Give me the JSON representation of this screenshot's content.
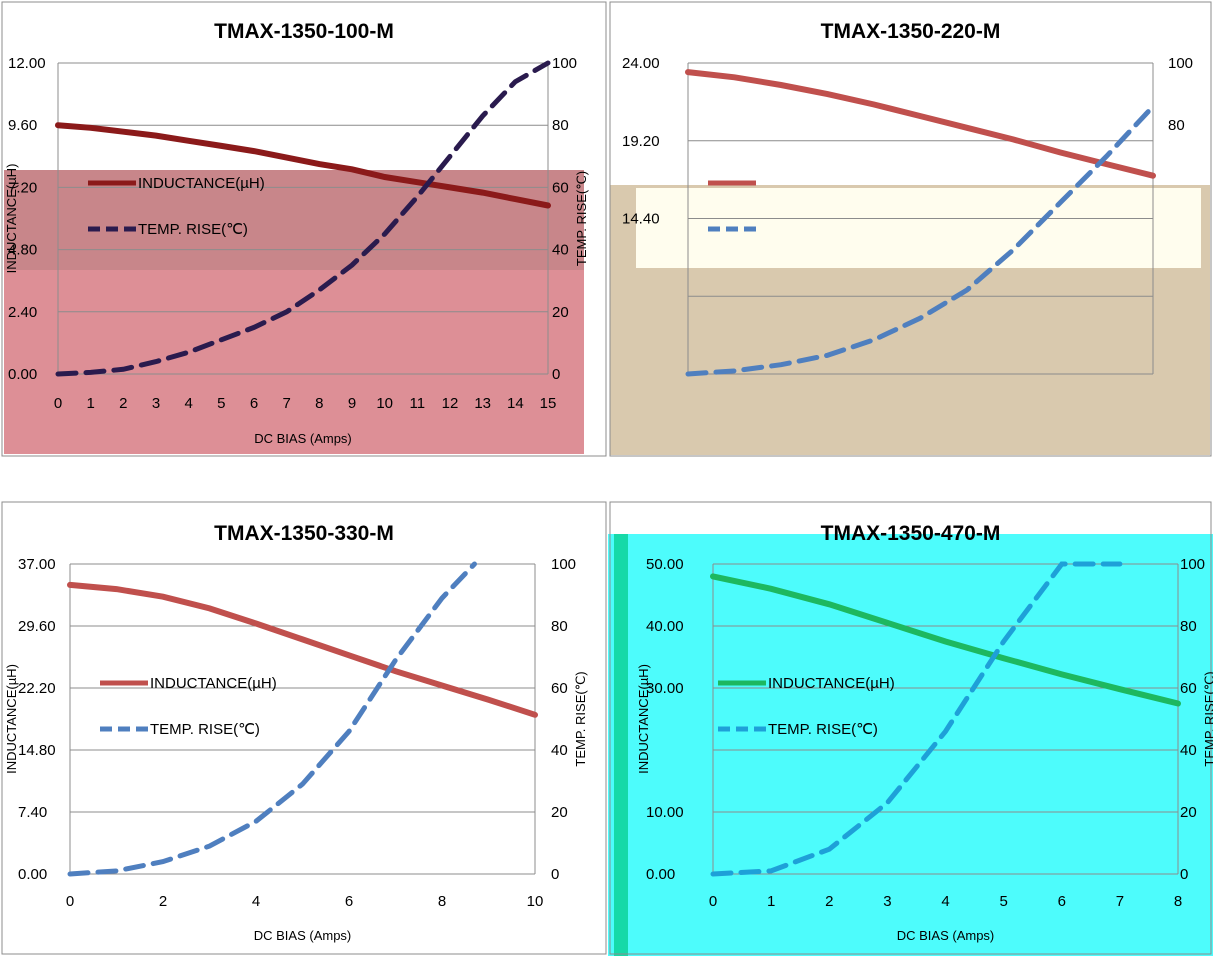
{
  "chart_data": [
    {
      "type": "line",
      "title": "TMAX-1350-100-M",
      "xlabel": "DC BIAS  (Amps)",
      "ylabel": "INDUCTANCE(µH)",
      "y2label": "TEMP. RISE(℃)",
      "categories": [
        "0",
        "1",
        "2",
        "3",
        "4",
        "5",
        "6",
        "7",
        "8",
        "9",
        "10",
        "11",
        "12",
        "13",
        "14",
        "15"
      ],
      "xlim": [
        0,
        15
      ],
      "ylim": [
        0,
        12
      ],
      "y2lim": [
        0,
        100
      ],
      "yticks": [
        "0.00",
        "2.40",
        "4.80",
        "7.20",
        "9.60",
        "12.00"
      ],
      "y2ticks": [
        "0",
        "20",
        "40",
        "60",
        "80",
        "100"
      ],
      "legend_position": "left",
      "colors": {
        "plot_bg": "#dd8f96",
        "legend_bg": "#c8868a",
        "inductance": "#8b1a1a",
        "temp": "#2a1b4e"
      },
      "series": [
        {
          "name": "INDUCTANCE(µH)",
          "axis": "left",
          "x": [
            0,
            1,
            2,
            3,
            4,
            5,
            6,
            7,
            8,
            9,
            10,
            11,
            12,
            13,
            14,
            15
          ],
          "values": [
            9.6,
            9.5,
            9.35,
            9.2,
            9.0,
            8.8,
            8.6,
            8.35,
            8.1,
            7.9,
            7.6,
            7.4,
            7.2,
            7.0,
            6.75,
            6.5
          ]
        },
        {
          "name": "TEMP. RISE(℃)",
          "axis": "right",
          "x": [
            0,
            1,
            2,
            3,
            4,
            5,
            6,
            7,
            8,
            9,
            10,
            11,
            12,
            13,
            14,
            15
          ],
          "values": [
            0,
            0.5,
            1.5,
            4,
            7,
            11,
            15,
            20,
            27,
            35,
            45,
            57,
            70,
            83,
            94,
            100
          ]
        }
      ]
    },
    {
      "type": "line",
      "title": "TMAX-1350-220-M",
      "xlabel": "",
      "ylabel": "",
      "y2label": "",
      "categories": [],
      "xlim": [
        0,
        10
      ],
      "ylim": [
        0,
        24
      ],
      "y2lim": [
        0,
        100
      ],
      "yticks": [
        "",
        "",
        "14.40",
        "19.20",
        "24.00"
      ],
      "y2ticks": [
        "",
        "",
        "",
        "",
        "80",
        "100"
      ],
      "legend_position": "left",
      "colors": {
        "plot_bg": "#d9c9ae",
        "legend_bg": "#fffdee",
        "inductance": "#c0504d",
        "temp": "#4f7fbf"
      },
      "series": [
        {
          "name": "",
          "axis": "left",
          "x": [
            0,
            1,
            2,
            3,
            4,
            5,
            6,
            7,
            8,
            9,
            10
          ],
          "values": [
            23.3,
            22.9,
            22.3,
            21.6,
            20.8,
            19.9,
            19.0,
            18.1,
            17.1,
            16.2,
            15.3
          ]
        },
        {
          "name": "",
          "axis": "right",
          "x": [
            0,
            1,
            2,
            3,
            4,
            5,
            6,
            7,
            8,
            9,
            10
          ],
          "values": [
            0,
            1,
            3,
            6,
            11,
            18,
            27,
            40,
            55,
            70,
            86
          ]
        }
      ]
    },
    {
      "type": "line",
      "title": "TMAX-1350-330-M",
      "xlabel": "DC BIAS  (Amps)",
      "ylabel": "INDUCTANCE(µH)",
      "y2label": "TEMP. RISE(℃)",
      "categories": [
        "0",
        "2",
        "4",
        "6",
        "8",
        "10"
      ],
      "xlim": [
        0,
        10
      ],
      "ylim": [
        0,
        37
      ],
      "y2lim": [
        0,
        100
      ],
      "yticks": [
        "0.00",
        "7.40",
        "14.80",
        "22.20",
        "29.60",
        "37.00"
      ],
      "y2ticks": [
        "0",
        "20",
        "40",
        "60",
        "80",
        "100"
      ],
      "legend_position": "left",
      "colors": {
        "plot_bg": "#ffffff",
        "legend_bg": "#ffffff",
        "inductance": "#c0504d",
        "temp_dark": "#4f7fbf",
        "temp_light": "#9cb9e6"
      },
      "series": [
        {
          "name": "INDUCTANCE(µH)",
          "axis": "left",
          "x": [
            0,
            1,
            2,
            3,
            4,
            5,
            6,
            7,
            8,
            9,
            10
          ],
          "values": [
            34.5,
            34.0,
            33.1,
            31.7,
            29.9,
            28.0,
            26.1,
            24.2,
            22.5,
            20.8,
            19.0
          ]
        },
        {
          "name": "TEMP. RISE(℃)",
          "axis": "right",
          "x": [
            0,
            1,
            2,
            3,
            4,
            5,
            6,
            7,
            8,
            8.7
          ],
          "values": [
            0,
            1,
            4,
            9,
            17,
            29,
            46,
            69,
            89,
            100
          ]
        }
      ]
    },
    {
      "type": "line",
      "title": "TMAX-1350-470-M",
      "xlabel": "DC BIAS  (Amps)",
      "ylabel": "INDUCTANCE(µH)",
      "y2label": "TEMP. RISE(℃)",
      "categories": [
        "0",
        "1",
        "2",
        "3",
        "4",
        "5",
        "6",
        "7",
        "8"
      ],
      "xlim": [
        0,
        8
      ],
      "ylim": [
        0,
        50
      ],
      "y2lim": [
        0,
        100
      ],
      "yticks": [
        "0.00",
        "10.00",
        "",
        "30.00",
        "40.00",
        "50.00"
      ],
      "y2ticks": [
        "0",
        "20",
        "40",
        "60",
        "80",
        "100"
      ],
      "legend_position": "left",
      "colors": {
        "plot_bg": "#4dfcfc",
        "inductance": "#1db860",
        "temp": "#1ea0d8"
      },
      "series": [
        {
          "name": "INDUCTANCE(µH)",
          "axis": "left",
          "x": [
            0,
            1,
            2,
            3,
            4,
            5,
            6,
            7,
            8
          ],
          "values": [
            48.0,
            46.0,
            43.5,
            40.5,
            37.5,
            34.8,
            32.2,
            29.8,
            27.5
          ]
        },
        {
          "name": "TEMP. RISE(℃)",
          "axis": "right",
          "x": [
            0,
            1,
            2,
            3,
            4,
            5,
            6,
            7
          ],
          "values": [
            0,
            1,
            8,
            23,
            46,
            75,
            100,
            100
          ]
        }
      ]
    }
  ]
}
